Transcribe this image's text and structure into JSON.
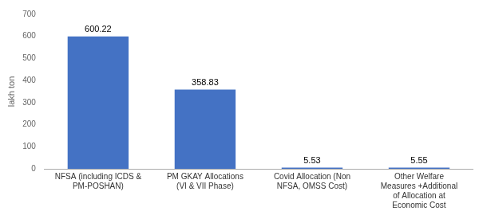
{
  "chart_data": {
    "type": "bar",
    "categories": [
      "NFSA (including ICDS &\nPM-POSHAN)",
      "PM GKAY Allocations\n(VI & VII Phase)",
      "Covid Allocation (Non\nNFSA, OMSS Cost)",
      "Other Welfare\nMeasures +Additional\nof Allocation at\nEconomic Cost"
    ],
    "values": [
      600.22,
      358.83,
      5.53,
      5.55
    ],
    "color": "#4472C4",
    "ylabel": "lakh ton",
    "ylim": [
      0,
      700
    ],
    "yticks": [
      0,
      100,
      200,
      300,
      400,
      500,
      600,
      700
    ],
    "grid": false,
    "data_labels": true
  }
}
